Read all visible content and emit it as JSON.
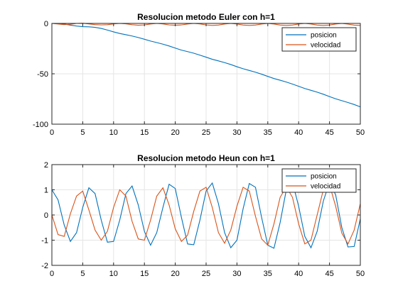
{
  "chart_data": [
    {
      "type": "line",
      "title": "Resolucion metodo Euler con h=1",
      "xlabel": "",
      "ylabel": "",
      "xlim": [
        0,
        50
      ],
      "ylim": [
        -100,
        0
      ],
      "xticks": [
        0,
        5,
        10,
        15,
        20,
        25,
        30,
        35,
        40,
        45,
        50
      ],
      "yticks": [
        -100,
        -50,
        0
      ],
      "grid": true,
      "legend_position": "top-right",
      "x": [
        0,
        1,
        2,
        3,
        4,
        5,
        6,
        7,
        8,
        9,
        10,
        11,
        12,
        13,
        14,
        15,
        16,
        17,
        18,
        19,
        20,
        21,
        22,
        23,
        24,
        25,
        26,
        27,
        28,
        29,
        30,
        31,
        32,
        33,
        34,
        35,
        36,
        37,
        38,
        39,
        40,
        41,
        42,
        43,
        44,
        45,
        46,
        47,
        48,
        49,
        50
      ],
      "series": [
        {
          "name": "posicion",
          "color": "#0072BD",
          "values": [
            0,
            0,
            -0.6,
            -1.7,
            -2.6,
            -3.2,
            -3.4,
            -3.9,
            -5,
            -6.6,
            -8.4,
            -10,
            -11.2,
            -12.5,
            -14,
            -15.7,
            -17.5,
            -19,
            -20.6,
            -22.4,
            -24.5,
            -26.5,
            -28,
            -29.6,
            -31.5,
            -33.5,
            -35.6,
            -37.2,
            -38.9,
            -40.8,
            -43,
            -45,
            -46.7,
            -48.4,
            -50.4,
            -52.6,
            -54.7,
            -56.4,
            -58.2,
            -60.2,
            -62.4,
            -64.6,
            -66.4,
            -68.2,
            -70.3,
            -72.6,
            -74.8,
            -76.7,
            -78.5,
            -80.5,
            -82.8
          ]
        },
        {
          "name": "velocidad",
          "color": "#D95319",
          "values": [
            0,
            -0.6,
            -1.2,
            -0.8,
            0,
            0.2,
            -0.5,
            -1.2,
            -1.5,
            -1.3,
            -0.5,
            0,
            -0.4,
            -1.3,
            -1.8,
            -1.5,
            -0.6,
            0,
            -0.5,
            -1.5,
            -1.8,
            -1.5,
            -0.6,
            0,
            -0.5,
            -1.5,
            -2,
            -1.6,
            -0.6,
            0,
            -0.6,
            -1.6,
            -2,
            -1.6,
            -0.6,
            0,
            -0.6,
            -1.6,
            -2,
            -1.6,
            -0.6,
            0,
            -0.6,
            -1.6,
            -2,
            -1.6,
            -0.6,
            0,
            -0.7,
            -1.7,
            -2
          ]
        }
      ]
    },
    {
      "type": "line",
      "title": "Resolucion metodo Heun con h=1",
      "xlabel": "",
      "ylabel": "",
      "xlim": [
        0,
        50
      ],
      "ylim": [
        -2,
        2
      ],
      "xticks": [
        0,
        5,
        10,
        15,
        20,
        25,
        30,
        35,
        40,
        45,
        50
      ],
      "yticks": [
        -2,
        -1,
        0,
        1,
        2
      ],
      "grid": true,
      "legend_position": "top-right",
      "x": [
        0,
        1,
        2,
        3,
        4,
        5,
        6,
        7,
        8,
        9,
        10,
        11,
        12,
        13,
        14,
        15,
        16,
        17,
        18,
        19,
        20,
        21,
        22,
        23,
        24,
        25,
        26,
        27,
        28,
        29,
        30,
        31,
        32,
        33,
        34,
        35,
        36,
        37,
        38,
        39,
        40,
        41,
        42,
        43,
        44,
        45,
        46,
        47,
        48,
        49,
        50
      ],
      "series": [
        {
          "name": "posicion",
          "color": "#0072BD",
          "values": [
            1,
            0.6,
            -0.4,
            -1.05,
            -0.7,
            0.3,
            1.08,
            0.85,
            -0.2,
            -1.08,
            -1.05,
            -0.2,
            0.85,
            1.15,
            0.4,
            -0.65,
            -1.2,
            -0.7,
            0.3,
            1.22,
            1.05,
            -0.1,
            -1.15,
            -1.18,
            -0.2,
            0.95,
            1.27,
            0.45,
            -0.7,
            -1.3,
            -1.0,
            0.25,
            1.25,
            1.1,
            -0.1,
            -1.2,
            -1.32,
            -0.3,
            1.0,
            1.3,
            0.35,
            -0.85,
            -1.3,
            -0.65,
            0.55,
            1.3,
            0.8,
            -0.5,
            -1.27,
            -1.25,
            -0.15
          ]
        },
        {
          "name": "velocidad",
          "color": "#D95319",
          "values": [
            0,
            -0.78,
            -0.85,
            0.05,
            0.75,
            0.95,
            0.2,
            -0.6,
            -1.0,
            -0.65,
            0.3,
            1.0,
            0.75,
            -0.25,
            -0.95,
            -1.0,
            -0.2,
            0.75,
            1.08,
            0.4,
            -0.55,
            -1.05,
            -0.8,
            0.15,
            0.95,
            1.1,
            0.3,
            -0.7,
            -1.12,
            -0.6,
            0.35,
            1.1,
            0.95,
            -0.05,
            -0.95,
            -1.2,
            -0.35,
            0.7,
            1.12,
            0.7,
            -0.35,
            -1.15,
            -1.0,
            0,
            1.0,
            1.2,
            0.35,
            -0.72,
            -1.15,
            -0.6,
            0.45
          ]
        }
      ]
    }
  ]
}
